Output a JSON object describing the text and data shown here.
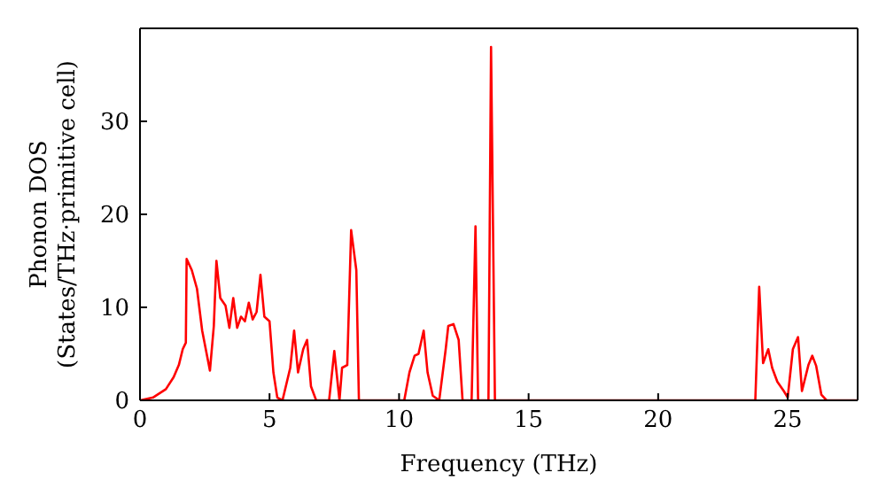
{
  "chart_data": {
    "type": "line",
    "xlabel": "Frequency (THz)",
    "ylabel": "Phonon DOS\n(States/THz·primitive cell)",
    "xlim": [
      0,
      27.7
    ],
    "xticks": [
      0,
      5,
      10,
      15,
      20,
      25
    ],
    "ylim": [
      0,
      40
    ],
    "yticks": [
      0,
      10,
      20,
      30
    ],
    "legend": false,
    "marker": "none",
    "line_style": "solid",
    "series": [
      {
        "color": "#ff0000",
        "x": [
          0,
          0.5,
          1.0,
          1.3,
          1.5,
          1.65,
          1.77,
          1.8,
          2.0,
          2.2,
          2.4,
          2.7,
          2.85,
          2.95,
          3.1,
          3.3,
          3.45,
          3.6,
          3.75,
          3.9,
          4.05,
          4.2,
          4.35,
          4.5,
          4.65,
          4.8,
          5.0,
          5.15,
          5.3,
          5.5,
          5.8,
          5.95,
          6.1,
          6.3,
          6.45,
          6.6,
          6.8,
          7.3,
          7.5,
          7.7,
          7.8,
          8.0,
          8.15,
          8.35,
          8.45,
          10.2,
          10.4,
          10.6,
          10.75,
          10.95,
          11.1,
          11.3,
          11.55,
          11.8,
          11.9,
          12.1,
          12.3,
          12.45,
          12.8,
          12.95,
          13.05,
          13.45,
          13.55,
          13.7,
          23.75,
          23.9,
          24.05,
          24.25,
          24.4,
          24.6,
          24.85,
          25.0,
          25.2,
          25.4,
          25.55,
          25.8,
          25.95,
          26.1,
          26.3,
          26.5,
          27.7
        ],
        "values": [
          0,
          0.3,
          1.2,
          2.5,
          3.8,
          5.5,
          6.2,
          15.2,
          14,
          12,
          7.5,
          3.2,
          8,
          15,
          11,
          10.2,
          7.8,
          11,
          7.8,
          9,
          8.5,
          10.5,
          8.7,
          9.5,
          13.5,
          9,
          8.5,
          3,
          0.3,
          0,
          3.5,
          7.5,
          3,
          5.5,
          6.5,
          1.5,
          0,
          0,
          5.3,
          0,
          3.5,
          3.8,
          18.3,
          14,
          0,
          0,
          3,
          4.8,
          5,
          7.5,
          3,
          0.5,
          0,
          5.5,
          8,
          8.2,
          6.5,
          0,
          0,
          18.7,
          0,
          0,
          38,
          0,
          0,
          12.2,
          4,
          5.5,
          3.5,
          2,
          1,
          0.3,
          5.5,
          6.8,
          1,
          3.8,
          4.8,
          3.7,
          0.6,
          0,
          0
        ]
      }
    ]
  }
}
